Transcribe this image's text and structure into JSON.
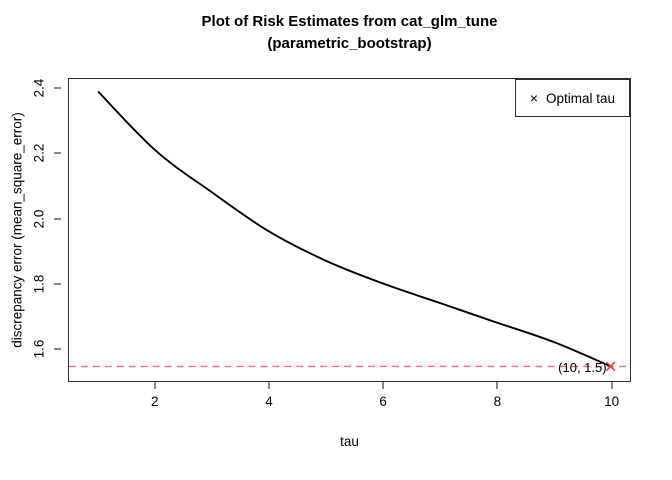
{
  "figure": {
    "title_line1": "Plot of Risk Estimates from cat_glm_tune",
    "title_line2": "(parametric_bootstrap)",
    "x_axis_title": "tau",
    "y_axis_title": "discrepancy error (mean_square_error)"
  },
  "legend": {
    "marker_glyph": "×",
    "label": "Optimal tau"
  },
  "annotation": {
    "text": "(10, 1.5)"
  },
  "colors": {
    "curve": "#000000",
    "optimal_red": "#e0413d",
    "dashed_red": "#ff6b66",
    "box_border": "#2e2e2e"
  },
  "chart_data": {
    "type": "line",
    "title": "Plot of Risk Estimates from cat_glm_tune (parametric_bootstrap)",
    "xlabel": "tau",
    "ylabel": "discrepancy error (mean_square_error)",
    "x": [
      1,
      2,
      3,
      4,
      5,
      6,
      7,
      8,
      9,
      10
    ],
    "series": [
      {
        "name": "risk estimate",
        "values": [
          2.39,
          2.21,
          2.08,
          1.96,
          1.87,
          1.8,
          1.74,
          1.68,
          1.62,
          1.545
        ]
      }
    ],
    "x_ticks": [
      "2",
      "4",
      "6",
      "8",
      "10"
    ],
    "x_tick_values": [
      2,
      4,
      6,
      8,
      10
    ],
    "y_ticks": [
      "1.6",
      "1.8",
      "2.0",
      "2.2",
      "2.4"
    ],
    "y_tick_values": [
      1.6,
      1.8,
      2.0,
      2.2,
      2.4
    ],
    "xlim": [
      0.48,
      10.34
    ],
    "ylim": [
      1.5,
      2.43
    ],
    "grid": false,
    "hline": {
      "y": 1.545,
      "style": "dashed",
      "color": "red"
    },
    "optimal_point": {
      "x": 10,
      "y": 1.545,
      "label": "(10, 1.5)",
      "marker": "x",
      "color": "red"
    },
    "legend": {
      "position": "top-right",
      "entries": [
        {
          "marker": "x",
          "color": "red",
          "label": "Optimal tau"
        }
      ]
    }
  }
}
